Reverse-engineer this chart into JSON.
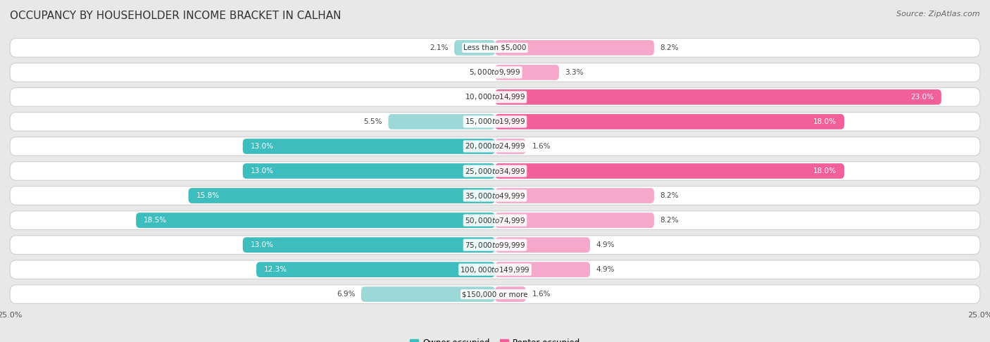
{
  "title": "OCCUPANCY BY HOUSEHOLDER INCOME BRACKET IN CALHAN",
  "source": "Source: ZipAtlas.com",
  "categories": [
    "Less than $5,000",
    "$5,000 to $9,999",
    "$10,000 to $14,999",
    "$15,000 to $19,999",
    "$20,000 to $24,999",
    "$25,000 to $34,999",
    "$35,000 to $49,999",
    "$50,000 to $74,999",
    "$75,000 to $99,999",
    "$100,000 to $149,999",
    "$150,000 or more"
  ],
  "owner_values": [
    2.1,
    0.0,
    0.0,
    5.5,
    13.0,
    13.0,
    15.8,
    18.5,
    13.0,
    12.3,
    6.9
  ],
  "renter_values": [
    8.2,
    3.3,
    23.0,
    18.0,
    1.6,
    18.0,
    8.2,
    8.2,
    4.9,
    4.9,
    1.6
  ],
  "owner_color_dark": "#3DBDBD",
  "owner_color_light": "#9DD8D8",
  "renter_color_dark": "#F2609A",
  "renter_color_light": "#F5A8CB",
  "owner_threshold": 10.0,
  "renter_threshold": 10.0,
  "axis_max": 25.0,
  "bg_color": "#e8e8e8",
  "row_bg_color": "#ffffff",
  "title_fontsize": 11,
  "source_fontsize": 8,
  "label_fontsize": 7.5,
  "category_fontsize": 7.5,
  "legend_fontsize": 8.5,
  "axis_label_fontsize": 8
}
